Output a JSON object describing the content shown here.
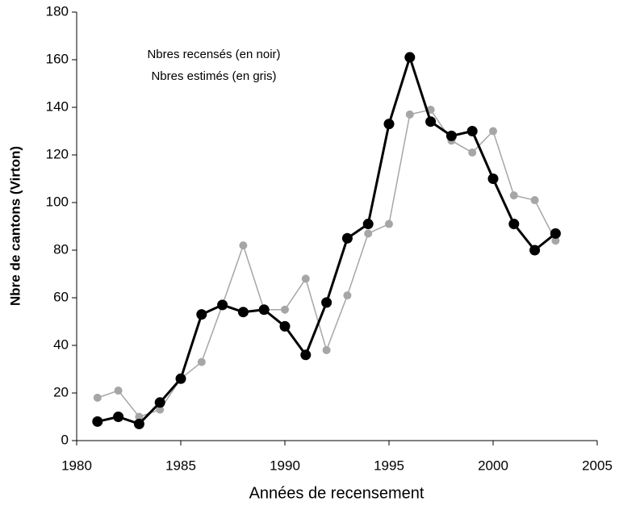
{
  "chart_data": {
    "type": "line",
    "x_label": "Années de recensement",
    "y_label": "Nbre de cantons (Virton)",
    "annotations": [
      "Nbres recensés (en noir)",
      "Nbres estimés (en gris)"
    ],
    "x": [
      1981,
      1982,
      1983,
      1984,
      1985,
      1986,
      1987,
      1988,
      1989,
      1990,
      1991,
      1992,
      1993,
      1994,
      1995,
      1996,
      1997,
      1998,
      1999,
      2000,
      2001,
      2002,
      2003
    ],
    "series": [
      {
        "color": "#a6a6a6",
        "values": [
          18,
          21,
          10,
          13,
          26,
          33,
          57,
          82,
          55,
          55,
          68,
          38,
          61,
          87,
          91,
          137,
          139,
          126,
          121,
          130,
          103,
          101,
          84
        ]
      },
      {
        "color": "#000000",
        "values": [
          8,
          10,
          7,
          16,
          26,
          53,
          57,
          54,
          55,
          48,
          36,
          58,
          85,
          91,
          133,
          161,
          134,
          128,
          130,
          110,
          91,
          80,
          87
        ]
      }
    ],
    "xlim": [
      1980,
      2005
    ],
    "xticks": [
      1980,
      1985,
      1990,
      1995,
      2000,
      2005
    ],
    "ylim": [
      0,
      180
    ],
    "yticks": [
      0,
      20,
      40,
      60,
      80,
      100,
      120,
      140,
      160,
      180
    ],
    "grid": false
  }
}
